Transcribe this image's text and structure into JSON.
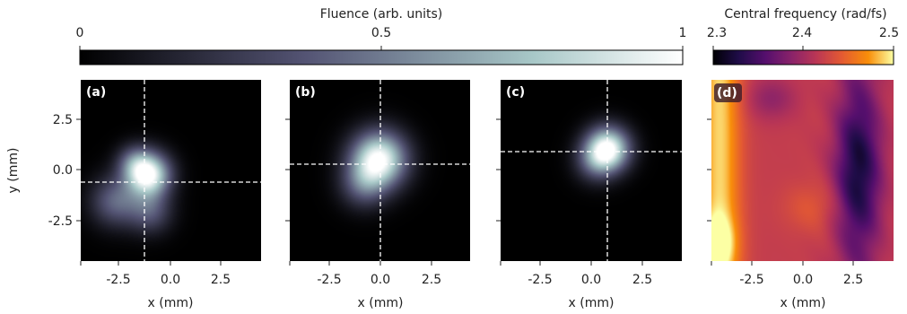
{
  "chart_data": {
    "type": "heatmap",
    "colorbars": {
      "fluence": {
        "label": "Fluence (arb. units)",
        "ticks": [
          0,
          0.5,
          1
        ],
        "tick_labels": [
          "0",
          "0.5",
          "1"
        ],
        "colormap": "bone",
        "range": [
          0,
          1
        ]
      },
      "frequency": {
        "label": "Central frequency (rad/fs)",
        "ticks": [
          2.3,
          2.4,
          2.5
        ],
        "tick_labels": [
          "2.3",
          "2.4",
          "2.5"
        ],
        "colormap": "inferno",
        "range": [
          2.3,
          2.5
        ]
      }
    },
    "panels": [
      {
        "label": "(a)",
        "quantity": "fluence",
        "xlabel": "x (mm)",
        "ylabel": "y (mm)",
        "xlim": [
          -4.4,
          4.4
        ],
        "ylim": [
          -4.4,
          4.4
        ],
        "xticks": [
          "-2.5",
          "0.0",
          "2.5"
        ],
        "yticks": [
          "2.5",
          "0.0",
          "-2.5"
        ],
        "crosshair": {
          "x": -1.3,
          "y": -0.6
        },
        "beam": [
          {
            "x": -1.1,
            "y": -0.2,
            "sigma": 0.75,
            "amp": 1.0
          },
          {
            "x": -2.7,
            "y": -1.5,
            "sigma": 0.85,
            "amp": 0.42
          },
          {
            "x": -1.0,
            "y": -2.0,
            "sigma": 0.75,
            "amp": 0.35
          },
          {
            "x": -1.8,
            "y": 0.4,
            "sigma": 0.6,
            "amp": 0.3
          }
        ]
      },
      {
        "label": "(b)",
        "quantity": "fluence",
        "xlabel": "x (mm)",
        "xlim": [
          -4.4,
          4.4
        ],
        "ylim": [
          -4.4,
          4.4
        ],
        "xticks": [
          "-2.5",
          "0.0",
          "2.5"
        ],
        "crosshair": {
          "x": 0.0,
          "y": 0.3
        },
        "beam": [
          {
            "x": -0.05,
            "y": 0.55,
            "sigma": 0.95,
            "amp": 1.0
          },
          {
            "x": -0.8,
            "y": -0.7,
            "sigma": 0.8,
            "amp": 0.35
          }
        ]
      },
      {
        "label": "(c)",
        "quantity": "fluence",
        "xlabel": "x (mm)",
        "xlim": [
          -4.4,
          4.4
        ],
        "ylim": [
          -4.4,
          4.4
        ],
        "xticks": [
          "-2.5",
          "0.0",
          "2.5"
        ],
        "crosshair": {
          "x": 0.8,
          "y": 0.9
        },
        "beam": [
          {
            "x": 0.8,
            "y": 1.05,
            "sigma": 0.75,
            "amp": 1.0
          },
          {
            "x": 0.2,
            "y": 0.4,
            "sigma": 0.7,
            "amp": 0.3
          }
        ]
      },
      {
        "label": "(d)",
        "quantity": "frequency",
        "xlabel": "x (mm)",
        "xlim": [
          -4.4,
          4.4
        ],
        "ylim": [
          -4.4,
          4.4
        ],
        "xticks": [
          "-2.5",
          "0.0",
          "2.5"
        ]
      }
    ]
  }
}
